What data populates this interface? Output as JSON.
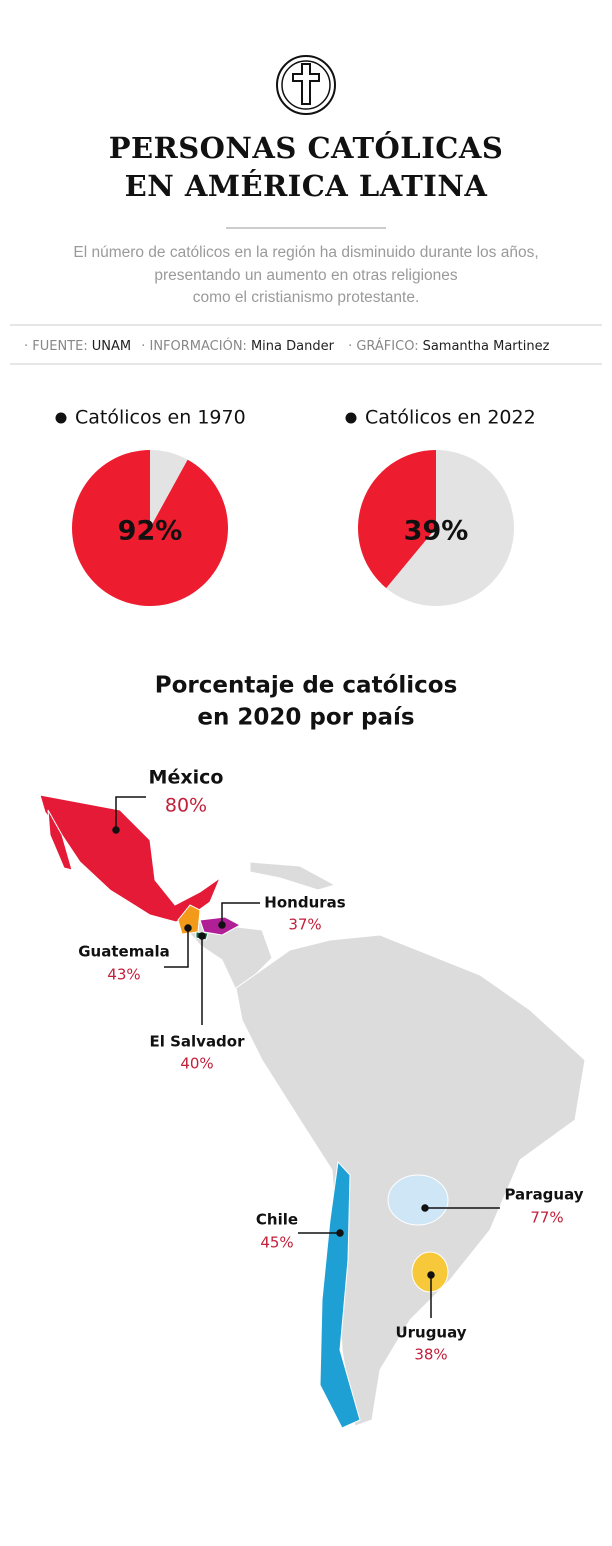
{
  "header": {
    "title_lines": [
      "PERSONAS CATÓLICAS",
      "EN AMÉRICA LATINA"
    ],
    "subtitle_lines": [
      "El número de católicos en la región ha disminuido durante los años,",
      "presentando un aumento en otras religiones",
      "como el cristianismo protestante."
    ]
  },
  "credits": [
    {
      "key": "FUENTE:",
      "value": "UNAM"
    },
    {
      "key": "INFORMACIÓN:",
      "value": "Mina Dander"
    },
    {
      "key": "GRÁFICO:",
      "value": "Samantha Martinez"
    }
  ],
  "chart_data": [
    {
      "type": "pie",
      "title": "Católicos en 1970",
      "values": [
        92,
        8
      ],
      "value_labels": [
        "92%",
        null
      ],
      "colors": [
        "#ee1c2f",
        "#e3e3e3"
      ]
    },
    {
      "type": "pie",
      "title": "Católicos en 2022",
      "values": [
        39,
        61
      ],
      "value_labels": [
        "39%",
        null
      ],
      "colors": [
        "#ee1c2f",
        "#e3e3e3"
      ]
    }
  ],
  "map": {
    "title_lines": [
      "Porcentaje de católicos",
      "en 2020 por país"
    ],
    "countries": [
      {
        "name": "México",
        "label": "80%"
      },
      {
        "name": "Honduras",
        "label": "37%"
      },
      {
        "name": "Guatemala",
        "label": "43%"
      },
      {
        "name": "El Salvador",
        "label": "40%"
      },
      {
        "name": "Chile",
        "label": "45%"
      },
      {
        "name": "Paraguay",
        "label": "77%"
      },
      {
        "name": "Uruguay",
        "label": "38%"
      }
    ]
  }
}
